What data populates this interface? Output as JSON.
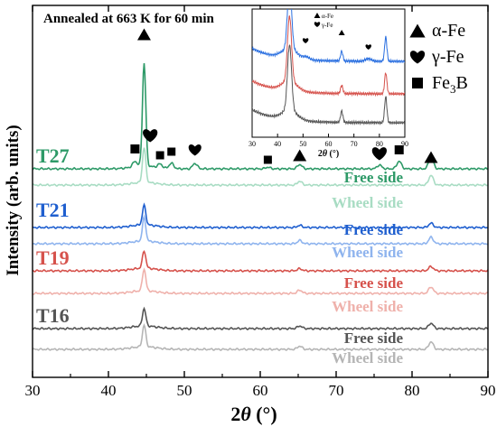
{
  "chart_data": {
    "type": "line",
    "title": "Annealed at 663 K for 60 min",
    "xlabel": "2θ (°)",
    "ylabel": "Intensity (arb. units)",
    "xlim": [
      30,
      90
    ],
    "xticks": [
      30,
      40,
      50,
      60,
      70,
      80,
      90
    ],
    "grid": false,
    "legend": {
      "position": "top-right",
      "entries": [
        {
          "symbol": "triangle",
          "label": "α-Fe"
        },
        {
          "symbol": "heart",
          "label": "γ-Fe"
        },
        {
          "symbol": "square",
          "label": "Fe3B"
        }
      ]
    },
    "series": [
      {
        "sample": "T27",
        "side": "Free side",
        "color": "#2e9a68",
        "main_peak": 9.5,
        "secondary": [
          [
            43.5,
            0.5
          ],
          [
            46.8,
            0.35
          ],
          [
            48.3,
            0.5
          ],
          [
            51.4,
            0.5
          ],
          [
            61.0,
            0.15
          ],
          [
            65.2,
            0.4
          ],
          [
            75.7,
            0.35
          ],
          [
            78.3,
            0.7
          ],
          [
            82.5,
            1.1
          ]
        ]
      },
      {
        "sample": "T27",
        "side": "Wheel side",
        "color": "#a8dcc3",
        "main_peak": 3.2,
        "secondary": [
          [
            65.2,
            0.35
          ],
          [
            82.5,
            0.9
          ]
        ]
      },
      {
        "sample": "T21",
        "side": "Free side",
        "color": "#1f5fcf",
        "main_peak": 1.8,
        "secondary": [
          [
            65.2,
            0.2
          ],
          [
            82.5,
            0.4
          ]
        ]
      },
      {
        "sample": "T21",
        "side": "Wheel side",
        "color": "#8fb4ee",
        "main_peak": 2.2,
        "secondary": [
          [
            65.2,
            0.3
          ],
          [
            82.5,
            0.6
          ]
        ]
      },
      {
        "sample": "T19",
        "side": "Free side",
        "color": "#d6524c",
        "main_peak": 1.6,
        "secondary": [
          [
            65.2,
            0.2
          ],
          [
            82.5,
            0.4
          ]
        ]
      },
      {
        "sample": "T19",
        "side": "Wheel side",
        "color": "#efb1ab",
        "main_peak": 2.0,
        "secondary": [
          [
            65.2,
            0.3
          ],
          [
            82.5,
            0.6
          ]
        ]
      },
      {
        "sample": "T16",
        "side": "Free side",
        "color": "#555555",
        "main_peak": 1.6,
        "secondary": [
          [
            65.2,
            0.25
          ],
          [
            82.5,
            0.5
          ]
        ]
      },
      {
        "sample": "T16",
        "side": "Wheel side",
        "color": "#b5b5b5",
        "main_peak": 2.0,
        "secondary": [
          [
            65.2,
            0.3
          ],
          [
            82.5,
            0.7
          ]
        ]
      }
    ],
    "sample_labels": [
      {
        "text": "T27",
        "color": "#2e9a68"
      },
      {
        "text": "T21",
        "color": "#1f5fcf"
      },
      {
        "text": "T19",
        "color": "#d6524c"
      },
      {
        "text": "T16",
        "color": "#555555"
      }
    ],
    "side_labels": [
      {
        "text": "Free side",
        "color": "#2e9a68"
      },
      {
        "text": "Wheel side",
        "color": "#a8dcc3"
      },
      {
        "text": "Free side",
        "color": "#1f5fcf"
      },
      {
        "text": "Wheel side",
        "color": "#8fb4ee"
      },
      {
        "text": "Free side",
        "color": "#d6524c"
      },
      {
        "text": "Wheel side",
        "color": "#efb1ab"
      },
      {
        "text": "Free side",
        "color": "#555555"
      },
      {
        "text": "Wheel side",
        "color": "#b5b5b5"
      }
    ],
    "peak_markers": [
      {
        "symbol": "triangle",
        "x": 44.7
      },
      {
        "symbol": "square",
        "x": 43.5
      },
      {
        "symbol": "heart",
        "x": 45.5
      },
      {
        "symbol": "square",
        "x": 46.8
      },
      {
        "symbol": "square",
        "x": 48.3
      },
      {
        "symbol": "heart",
        "x": 51.4
      },
      {
        "symbol": "square",
        "x": 61.0
      },
      {
        "symbol": "triangle",
        "x": 65.2
      },
      {
        "symbol": "heart",
        "x": 75.7
      },
      {
        "symbol": "square",
        "x": 78.3
      },
      {
        "symbol": "triangle",
        "x": 82.5
      }
    ],
    "inset": {
      "xlim": [
        30,
        90
      ],
      "xticks": [
        30,
        40,
        50,
        60,
        70,
        80,
        90
      ],
      "xlabel": "2θ (°)",
      "legend": [
        {
          "symbol": "triangle",
          "label": "α-Fe"
        },
        {
          "symbol": "heart",
          "label": "γ-Fe"
        }
      ],
      "series": [
        {
          "color": "#2a6fe0",
          "peaks": [
            [
              44.7,
              8
            ],
            [
              65.2,
              1.2
            ],
            [
              82.5,
              3.0
            ]
          ],
          "bumps": [
            [
              51.4,
              0.3
            ],
            [
              75.7,
              0.3
            ]
          ]
        },
        {
          "color": "#d6524c",
          "peaks": [
            [
              44.7,
              8
            ],
            [
              65.2,
              1.0
            ],
            [
              82.5,
              2.6
            ]
          ],
          "bumps": []
        },
        {
          "color": "#555555",
          "peaks": [
            [
              44.7,
              8
            ],
            [
              65.2,
              1.4
            ],
            [
              82.5,
              3.2
            ]
          ],
          "bumps": []
        }
      ],
      "markers": [
        {
          "symbol": "heart",
          "x": 51.0
        },
        {
          "symbol": "triangle",
          "x": 65.2
        },
        {
          "symbol": "heart",
          "x": 75.7
        }
      ]
    }
  }
}
